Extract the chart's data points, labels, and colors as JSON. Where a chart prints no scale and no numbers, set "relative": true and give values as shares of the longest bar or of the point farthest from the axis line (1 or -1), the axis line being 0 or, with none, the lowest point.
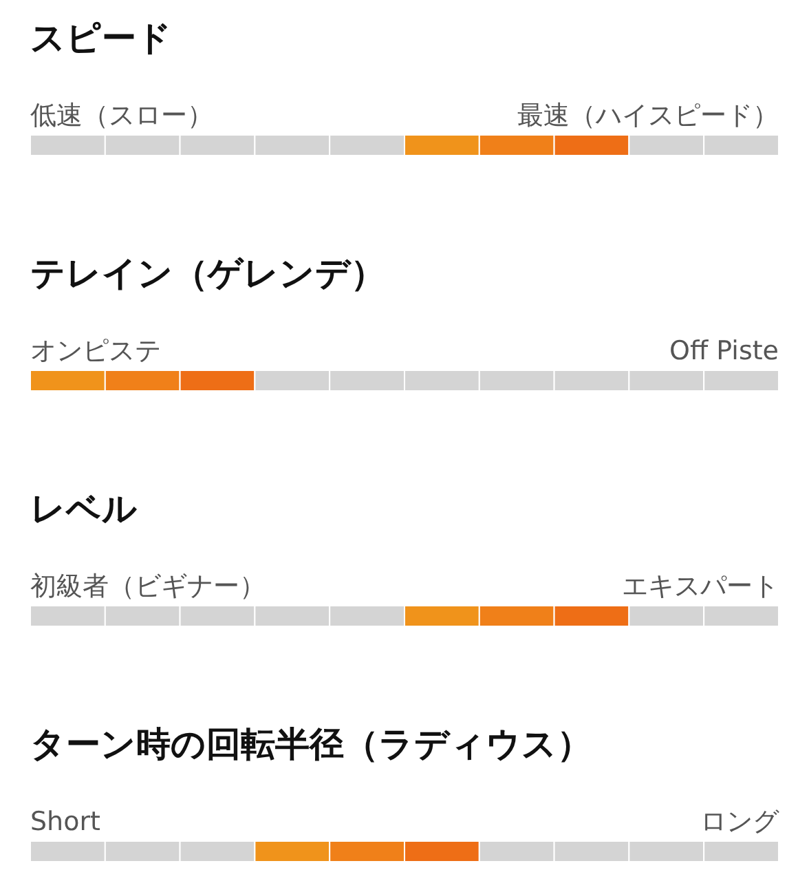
{
  "chart_data": [
    {
      "type": "bar",
      "orientation": "horizontal",
      "stacked": true,
      "relative": true,
      "title": "スピード",
      "categories": [
        null
      ],
      "annotations": [
        "低速（スロー）",
        "最速（ハイスピード）"
      ],
      "series": [
        {
          "color": "#d4d4d4",
          "values": [
            0.1
          ]
        },
        {
          "color": "#d4d4d4",
          "values": [
            0.1
          ]
        },
        {
          "color": "#d4d4d4",
          "values": [
            0.1
          ]
        },
        {
          "color": "#d4d4d4",
          "values": [
            0.1
          ]
        },
        {
          "color": "#d4d4d4",
          "values": [
            0.1
          ]
        },
        {
          "color": "#f0931b",
          "values": [
            0.1
          ]
        },
        {
          "color": "#f08019",
          "values": [
            0.1
          ]
        },
        {
          "color": "#ee6e16",
          "values": [
            0.1
          ]
        },
        {
          "color": "#d4d4d4",
          "values": [
            0.1
          ]
        },
        {
          "color": "#d4d4d4",
          "values": [
            0.1
          ]
        }
      ]
    },
    {
      "type": "bar",
      "orientation": "horizontal",
      "stacked": true,
      "relative": true,
      "title": "テレイン（ゲレンデ）",
      "categories": [
        null
      ],
      "annotations": [
        "オンピステ",
        "Off Piste"
      ],
      "series": [
        {
          "color": "#f0931b",
          "values": [
            0.1
          ]
        },
        {
          "color": "#f08019",
          "values": [
            0.1
          ]
        },
        {
          "color": "#ee6e16",
          "values": [
            0.1
          ]
        },
        {
          "color": "#d4d4d4",
          "values": [
            0.1
          ]
        },
        {
          "color": "#d4d4d4",
          "values": [
            0.1
          ]
        },
        {
          "color": "#d4d4d4",
          "values": [
            0.1
          ]
        },
        {
          "color": "#d4d4d4",
          "values": [
            0.1
          ]
        },
        {
          "color": "#d4d4d4",
          "values": [
            0.1
          ]
        },
        {
          "color": "#d4d4d4",
          "values": [
            0.1
          ]
        },
        {
          "color": "#d4d4d4",
          "values": [
            0.1
          ]
        }
      ]
    },
    {
      "type": "bar",
      "orientation": "horizontal",
      "stacked": true,
      "relative": true,
      "title": "レベル",
      "categories": [
        null
      ],
      "annotations": [
        "初級者（ビギナー）",
        "エキスパート"
      ],
      "series": [
        {
          "color": "#d4d4d4",
          "values": [
            0.1
          ]
        },
        {
          "color": "#d4d4d4",
          "values": [
            0.1
          ]
        },
        {
          "color": "#d4d4d4",
          "values": [
            0.1
          ]
        },
        {
          "color": "#d4d4d4",
          "values": [
            0.1
          ]
        },
        {
          "color": "#d4d4d4",
          "values": [
            0.1
          ]
        },
        {
          "color": "#f0931b",
          "values": [
            0.1
          ]
        },
        {
          "color": "#f08019",
          "values": [
            0.1
          ]
        },
        {
          "color": "#ee6e16",
          "values": [
            0.1
          ]
        },
        {
          "color": "#d4d4d4",
          "values": [
            0.1
          ]
        },
        {
          "color": "#d4d4d4",
          "values": [
            0.1
          ]
        }
      ]
    },
    {
      "type": "bar",
      "orientation": "horizontal",
      "stacked": true,
      "relative": true,
      "title": "ターン時の回転半径（ラディウス）",
      "categories": [
        null
      ],
      "annotations": [
        "Short",
        "ロング"
      ],
      "series": [
        {
          "color": "#d4d4d4",
          "values": [
            0.1
          ]
        },
        {
          "color": "#d4d4d4",
          "values": [
            0.1
          ]
        },
        {
          "color": "#d4d4d4",
          "values": [
            0.1
          ]
        },
        {
          "color": "#f0931b",
          "values": [
            0.1
          ]
        },
        {
          "color": "#f08019",
          "values": [
            0.1
          ]
        },
        {
          "color": "#ee6e16",
          "values": [
            0.1
          ]
        },
        {
          "color": "#d4d4d4",
          "values": [
            0.1
          ]
        },
        {
          "color": "#d4d4d4",
          "values": [
            0.1
          ]
        },
        {
          "color": "#d4d4d4",
          "values": [
            0.1
          ]
        },
        {
          "color": "#d4d4d4",
          "values": [
            0.1
          ]
        }
      ]
    }
  ]
}
